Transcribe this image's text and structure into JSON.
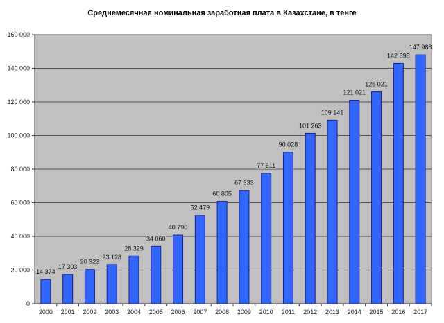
{
  "chart_data": {
    "type": "bar",
    "title": "Среднемесячная номинальная заработная плата в Казахстане, в тенге",
    "xlabel": "",
    "ylabel": "",
    "categories": [
      "2000",
      "2001",
      "2002",
      "2003",
      "2004",
      "2005",
      "2006",
      "2007",
      "2008",
      "2009",
      "2010",
      "2011",
      "2012",
      "2013",
      "2014",
      "2015",
      "2016",
      "2017"
    ],
    "values": [
      14374,
      17303,
      20323,
      23128,
      28329,
      34060,
      40790,
      52479,
      60805,
      67333,
      77611,
      90028,
      101263,
      109141,
      121021,
      126021,
      142898,
      147988
    ],
    "data_labels": [
      "14 374",
      "17 303",
      "20 323",
      "23 128",
      "28 329",
      "34 060",
      "40 790",
      "52 479",
      "60 805",
      "67 333",
      "77 611",
      "90 028",
      "101 263",
      "109 141",
      "121 021",
      "126 021",
      "142 898",
      "147 988"
    ],
    "ylim": [
      0,
      160000
    ],
    "yticks": [
      0,
      20000,
      40000,
      60000,
      80000,
      100000,
      120000,
      140000,
      160000
    ],
    "ytick_labels": [
      "0",
      "20 000",
      "40 000",
      "60 000",
      "80 000",
      "100 000",
      "120 000",
      "140 000",
      "160 000"
    ],
    "grid": true,
    "legend": "none",
    "colors": {
      "bar": "#3366ff",
      "bar_edge": "#1a237e",
      "plot_bg": "#c0c0c0",
      "grid": "#555555"
    }
  }
}
